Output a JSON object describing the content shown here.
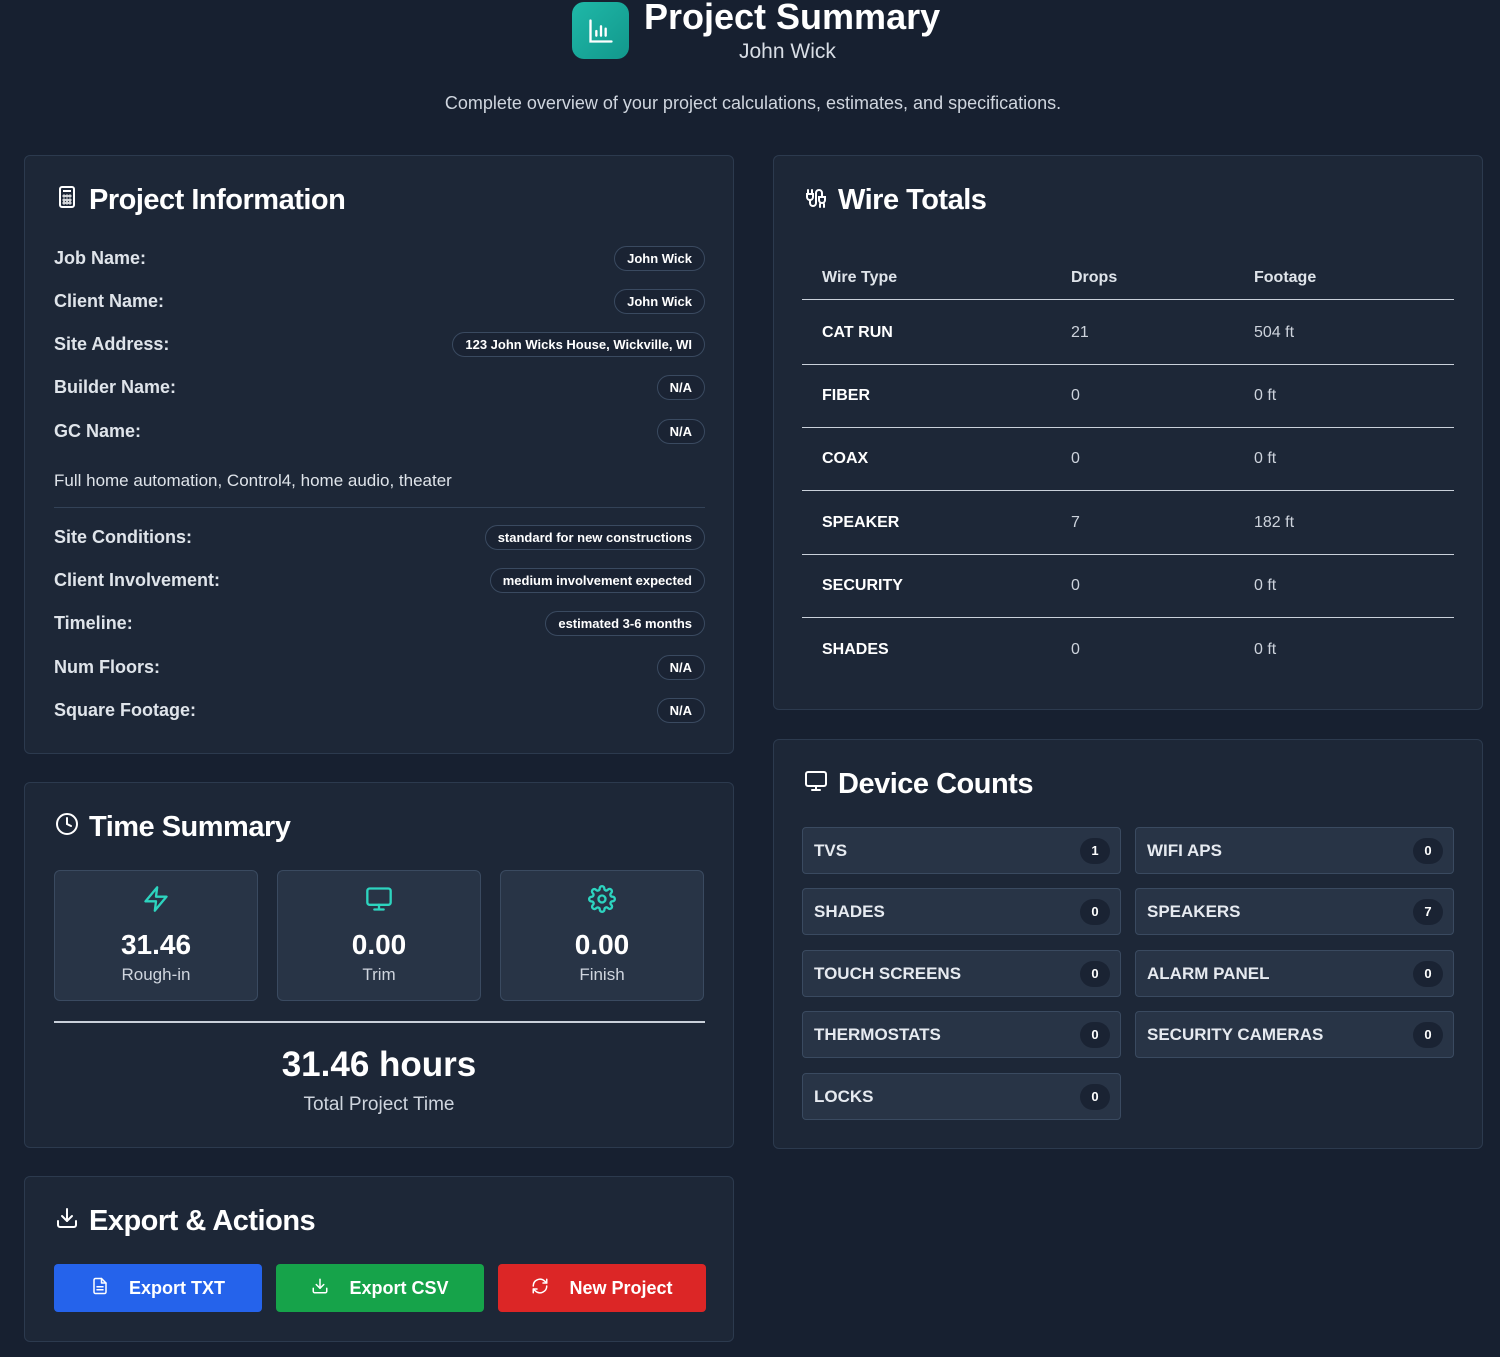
{
  "header": {
    "title": "Project Summary",
    "subtitle": "John Wick",
    "tagline": "Complete overview of your project calculations, estimates, and specifications.",
    "logo_icon": "bar-chart-icon"
  },
  "project_info": {
    "title": "Project Information",
    "icon": "calculator-icon",
    "rows": [
      {
        "label": "Job Name:",
        "value": "John Wick"
      },
      {
        "label": "Client Name:",
        "value": "John Wick"
      },
      {
        "label": "Site Address:",
        "value": "123 John Wicks House, Wickville, WI"
      },
      {
        "label": "Builder Name:",
        "value": "N/A"
      },
      {
        "label": "GC Name:",
        "value": "N/A"
      }
    ],
    "notes": "Full home automation, Control4, home audio, theater",
    "rows2": [
      {
        "label": "Site Conditions:",
        "value": "standard for new constructions"
      },
      {
        "label": "Client Involvement:",
        "value": "medium involvement expected"
      },
      {
        "label": "Timeline:",
        "value": "estimated 3-6 months"
      },
      {
        "label": "Num Floors:",
        "value": "N/A"
      },
      {
        "label": "Square Footage:",
        "value": "N/A"
      }
    ]
  },
  "wire_totals": {
    "title": "Wire Totals",
    "icon": "cable-icon",
    "columns": [
      "Wire Type",
      "Drops",
      "Footage"
    ],
    "rows": [
      [
        "CAT RUN",
        "21",
        "504 ft"
      ],
      [
        "FIBER",
        "0",
        "0 ft"
      ],
      [
        "COAX",
        "0",
        "0 ft"
      ],
      [
        "SPEAKER",
        "7",
        "182 ft"
      ],
      [
        "SECURITY",
        "0",
        "0 ft"
      ],
      [
        "SHADES",
        "0",
        "0 ft"
      ]
    ]
  },
  "time_summary": {
    "title": "Time Summary",
    "icon": "clock-icon",
    "phases": [
      {
        "value": "31.46",
        "label": "Rough-in",
        "icon": "lightning-icon"
      },
      {
        "value": "0.00",
        "label": "Trim",
        "icon": "monitor-icon"
      },
      {
        "value": "0.00",
        "label": "Finish",
        "icon": "gear-icon"
      }
    ],
    "total_value": "31.46 hours",
    "total_label": "Total Project Time",
    "icon_color": "#2dd4bf"
  },
  "export": {
    "title": "Export & Actions",
    "icon": "download-icon",
    "buttons": [
      {
        "label": "Export TXT",
        "color": "#2563eb",
        "icon": "file-text-icon"
      },
      {
        "label": "Export CSV",
        "color": "#16a34a",
        "icon": "download-icon"
      },
      {
        "label": "New Project",
        "color": "#dc2626",
        "icon": "refresh-icon"
      }
    ]
  },
  "devices": {
    "title": "Device Counts",
    "icon": "monitor-icon",
    "items": [
      {
        "name": "TVS",
        "count": "1"
      },
      {
        "name": "WIFI APS",
        "count": "0"
      },
      {
        "name": "SHADES",
        "count": "0"
      },
      {
        "name": "SPEAKERS",
        "count": "7"
      },
      {
        "name": "TOUCH SCREENS",
        "count": "0"
      },
      {
        "name": "ALARM PANEL",
        "count": "0"
      },
      {
        "name": "THERMOSTATS",
        "count": "0"
      },
      {
        "name": "SECURITY CAMERAS",
        "count": "0"
      },
      {
        "name": "LOCKS",
        "count": "0"
      }
    ]
  }
}
